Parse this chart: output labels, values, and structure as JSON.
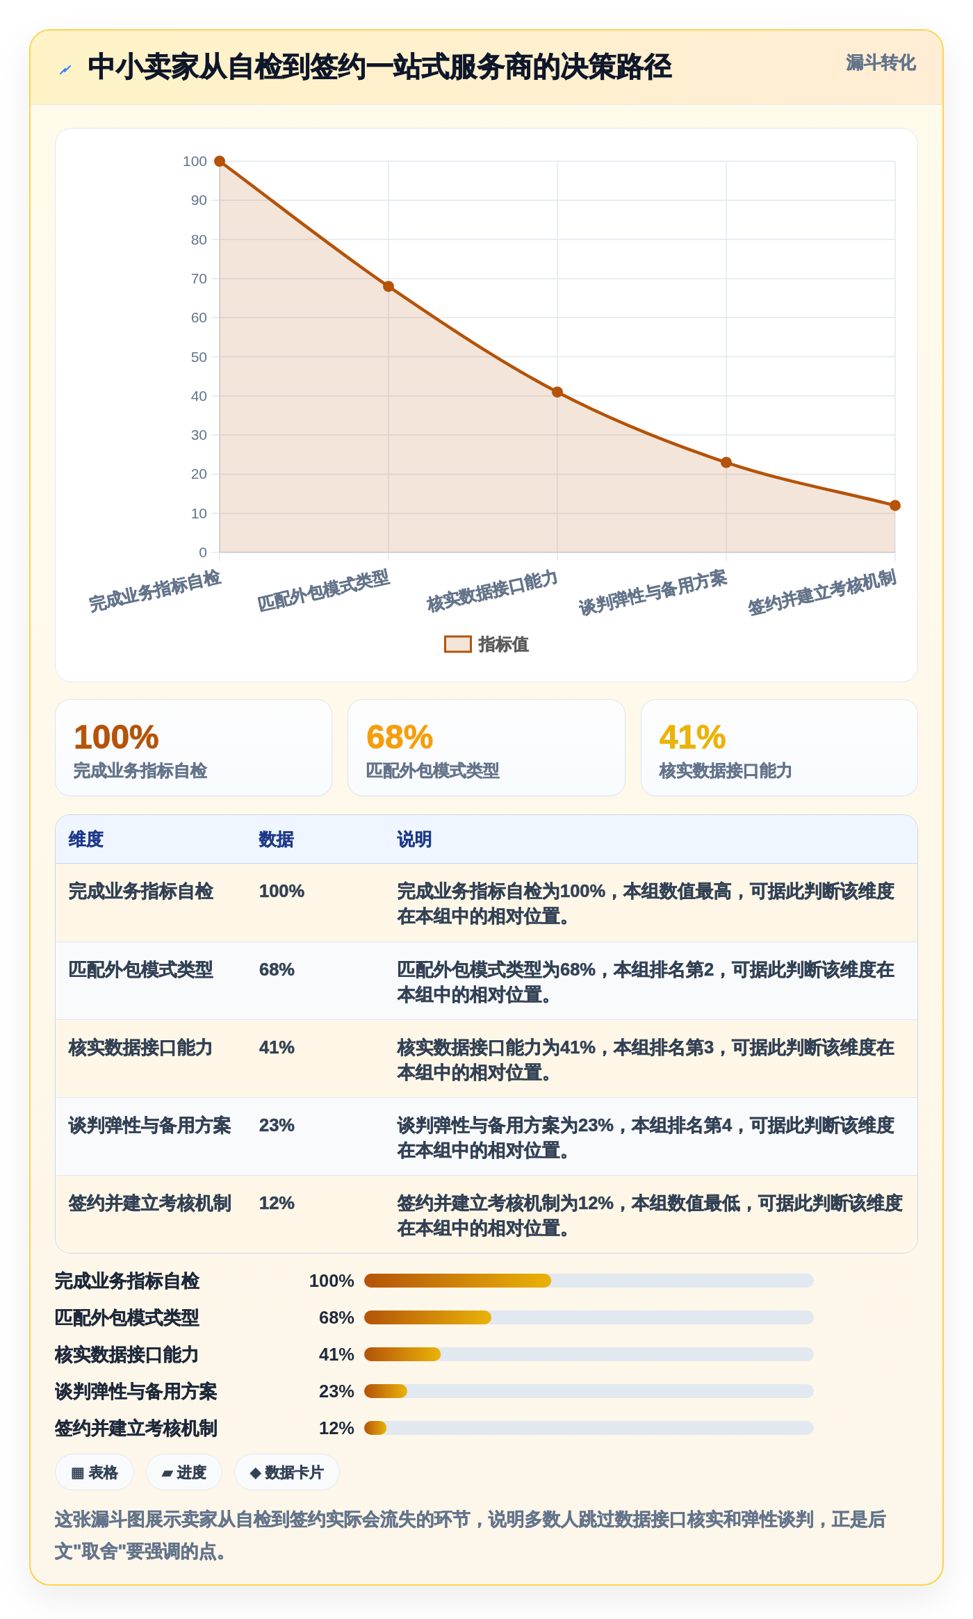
{
  "chart_data": [
    {
      "type": "area",
      "title": "中小卖家从自检到签约一站式服务商的决策路径",
      "subtitle": "漏斗转化",
      "categories": [
        "完成业务指标自检",
        "匹配外包模式类型",
        "核实数据接口能力",
        "谈判弹性与备用方案",
        "签约并建立考核机制"
      ],
      "series": [
        {
          "name": "指标值",
          "color": "#b45309",
          "values": [
            100,
            68,
            41,
            23,
            12
          ]
        }
      ],
      "ylim": [
        0,
        100
      ],
      "yticks": [
        0,
        10,
        20,
        30,
        40,
        50,
        60,
        70,
        80,
        90,
        100
      ],
      "grid": true,
      "legend": "bottom",
      "marker": "circle"
    },
    {
      "type": "other",
      "annotations": [
        "100%",
        "完成业务指标自检",
        "68%",
        "匹配外包模式类型",
        "41%",
        "核实数据接口能力"
      ],
      "colors": [
        "#b45309",
        "#f59e0b",
        "#eab308"
      ]
    },
    {
      "type": "other",
      "categories": [
        "完成业务指标自检",
        "匹配外包模式类型",
        "核实数据接口能力",
        "谈判弹性与备用方案",
        "签约并建立考核机制"
      ],
      "annotations": [
        "维度",
        "数据",
        "说明",
        "100%",
        "完成业务指标自检为100%，本组数值最高，可据此判断该维度在本组中的相对位置。",
        "68%",
        "匹配外包模式类型为68%，本组排名第2，可据此判断该维度在本组中的相对位置。",
        "41%",
        "核实数据接口能力为41%，本组排名第3，可据此判断该维度在本组中的相对位置。",
        "23%",
        "谈判弹性与备用方案为23%，本组排名第4，可据此判断该维度在本组中的相对位置。",
        "12%",
        "签约并建立考核机制为12%，本组数值最低，可据此判断该维度在本组中的相对位置。"
      ]
    },
    {
      "type": "bar",
      "orientation": "horizontal",
      "categories": [
        "完成业务指标自检",
        "匹配外包模式类型",
        "核实数据接口能力",
        "谈判弹性与备用方案",
        "签约并建立考核机制"
      ],
      "values": [
        100,
        68,
        41,
        23,
        12
      ],
      "value_labels": [
        "100%",
        "68%",
        "41%",
        "23%",
        "12%"
      ],
      "color": "#b45309"
    },
    {
      "type": "other",
      "annotations": [
        "▦ 表格",
        "▰ 进度",
        "◆ 数据卡片",
        "这张漏斗图展示卖家从自检到签约实际会流失的环节，说明多数人跳过数据接口核实和弹性谈判，正是后文\"取舍\"要强调的点。"
      ]
    }
  ]
}
